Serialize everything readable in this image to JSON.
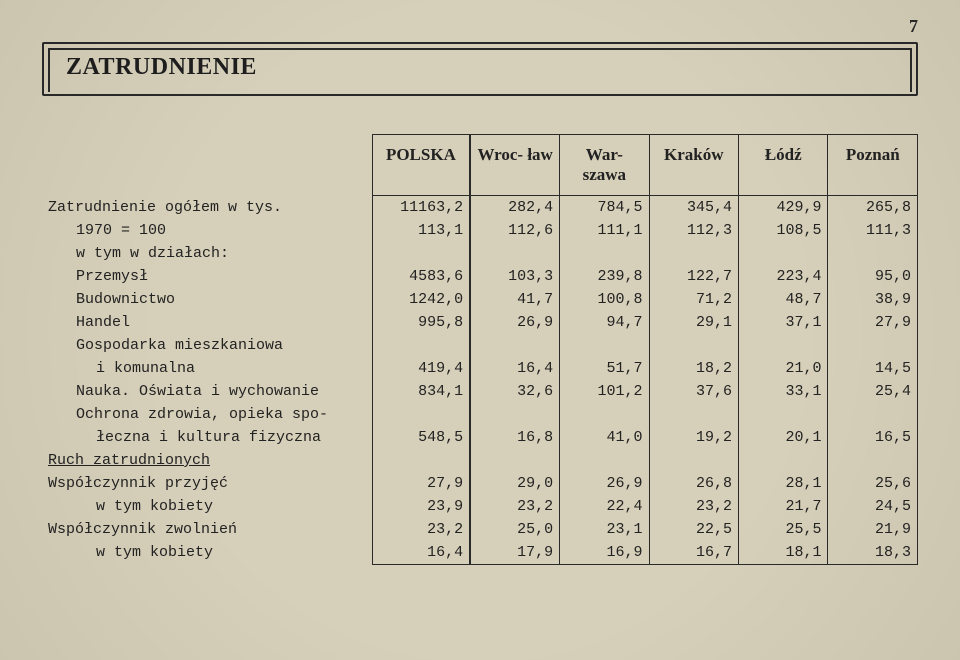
{
  "page_number": "7",
  "title": "ZATRUDNIENIE",
  "columns": [
    "POLSKA",
    "Wroc-\nław",
    "War-\nszawa",
    "Kraków",
    "Łódź",
    "Poznań"
  ],
  "rows": [
    {
      "label": "Zatrudnienie ogółem w tys.",
      "indent": 0,
      "vals": [
        "11163,2",
        "282,4",
        "784,5",
        "345,4",
        "429,9",
        "265,8"
      ]
    },
    {
      "label": "1970 = 100",
      "indent": 1,
      "vals": [
        "113,1",
        "112,6",
        "111,1",
        "112,3",
        "108,5",
        "111,3"
      ]
    },
    {
      "label": "w tym w działach:",
      "indent": 1,
      "vals": [
        "",
        "",
        "",
        "",
        "",
        ""
      ]
    },
    {
      "label": "Przemysł",
      "indent": 1,
      "vals": [
        "4583,6",
        "103,3",
        "239,8",
        "122,7",
        "223,4",
        "95,0"
      ]
    },
    {
      "label": "Budownictwo",
      "indent": 1,
      "vals": [
        "1242,0",
        "41,7",
        "100,8",
        "71,2",
        "48,7",
        "38,9"
      ]
    },
    {
      "label": "Handel",
      "indent": 1,
      "vals": [
        "995,8",
        "26,9",
        "94,7",
        "29,1",
        "37,1",
        "27,9"
      ]
    },
    {
      "label": "Gospodarka mieszkaniowa",
      "indent": 1,
      "vals": [
        "",
        "",
        "",
        "",
        "",
        ""
      ]
    },
    {
      "label": "i komunalna",
      "indent": 2,
      "vals": [
        "419,4",
        "16,4",
        "51,7",
        "18,2",
        "21,0",
        "14,5"
      ]
    },
    {
      "label": "Nauka. Oświata i wychowanie",
      "indent": 1,
      "vals": [
        "834,1",
        "32,6",
        "101,2",
        "37,6",
        "33,1",
        "25,4"
      ]
    },
    {
      "label": "Ochrona zdrowia, opieka spo-",
      "indent": 1,
      "vals": [
        "",
        "",
        "",
        "",
        "",
        ""
      ]
    },
    {
      "label": "łeczna i kultura fizyczna",
      "indent": 2,
      "vals": [
        "548,5",
        "16,8",
        "41,0",
        "19,2",
        "20,1",
        "16,5"
      ]
    },
    {
      "label": "Ruch zatrudnionych",
      "indent": 0,
      "section": true,
      "vals": [
        "",
        "",
        "",
        "",
        "",
        ""
      ]
    },
    {
      "label": "Współczynnik przyjęć",
      "indent": 0,
      "vals": [
        "27,9",
        "29,0",
        "26,9",
        "26,8",
        "28,1",
        "25,6"
      ]
    },
    {
      "label": "w tym kobiety",
      "indent": 2,
      "vals": [
        "23,9",
        "23,2",
        "22,4",
        "23,2",
        "21,7",
        "24,5"
      ]
    },
    {
      "label": "Współczynnik zwolnień",
      "indent": 0,
      "vals": [
        "23,2",
        "25,0",
        "23,1",
        "22,5",
        "25,5",
        "21,9"
      ]
    },
    {
      "label": "w tym kobiety",
      "indent": 2,
      "vals": [
        "16,4",
        "17,9",
        "16,9",
        "16,7",
        "18,1",
        "18,3"
      ]
    }
  ],
  "style": {
    "bg": "#d6cfb9",
    "ink": "#2a2a2a",
    "font_label": "Courier New",
    "font_header": "Georgia",
    "title_fontsize": 24,
    "header_fontsize": 17,
    "body_fontsize": 15
  }
}
